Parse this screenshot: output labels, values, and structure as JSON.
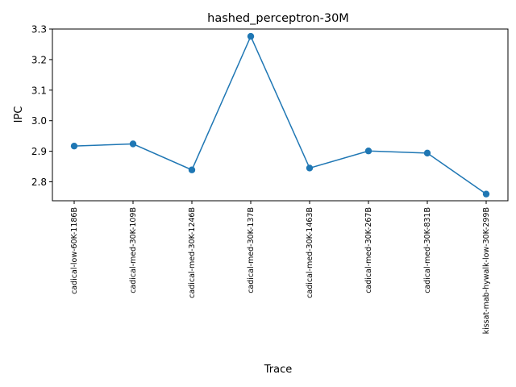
{
  "chart_data": {
    "type": "line",
    "title": "hashed_perceptron-30M",
    "xlabel": "Trace",
    "ylabel": "IPC",
    "categories": [
      "cadical-low-60K-1186B",
      "cadical-med-30K-109B",
      "cadical-med-30K-1246B",
      "cadical-med-30K-137B",
      "cadical-med-30K-1463B",
      "cadical-med-30K-267B",
      "cadical-med-30K-831B",
      "kissat-mab-hywalk-low-30K-299B"
    ],
    "values": [
      2.917,
      2.924,
      2.839,
      3.276,
      2.845,
      2.901,
      2.894,
      2.76
    ],
    "ylim": [
      2.738,
      3.3
    ],
    "yticks": [
      2.8,
      2.9,
      3.0,
      3.1,
      3.2,
      3.3
    ],
    "ytick_labels": [
      "2.8",
      "2.9",
      "3.0",
      "3.1",
      "3.2",
      "3.3"
    ],
    "grid": false,
    "color": "#1f77b4"
  }
}
